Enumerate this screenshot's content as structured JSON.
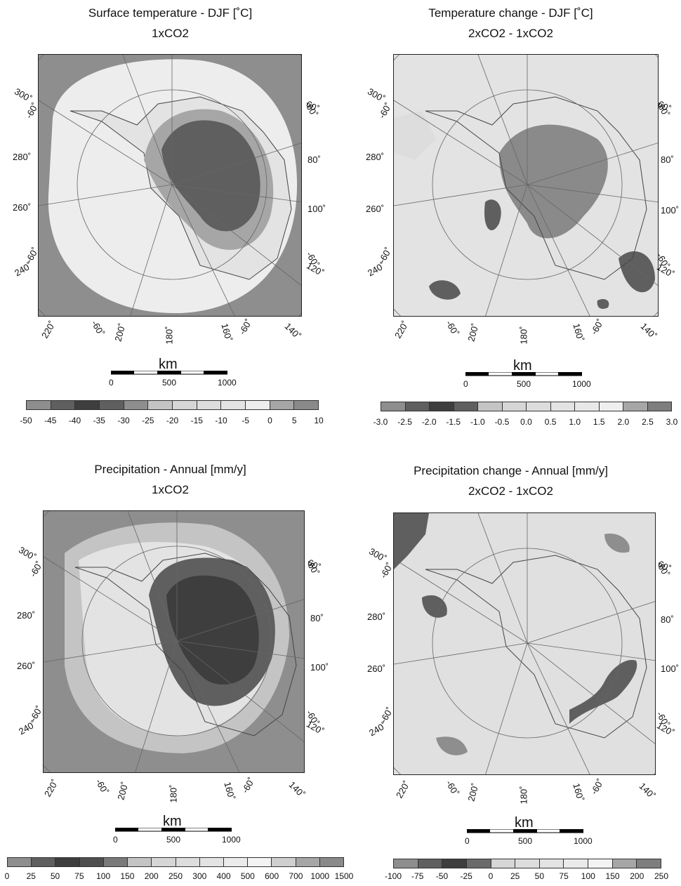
{
  "panels": [
    {
      "title": "Surface temperature - DJF [˚C]",
      "subtitle": "1xCO2",
      "colorbar_levels": [
        "-50",
        "-45",
        "-40",
        "-35",
        "-30",
        "-25",
        "-20",
        "-15",
        "-10",
        "-5",
        "0",
        "5",
        "10"
      ],
      "colorbar_colors": [
        "#8e8e8e",
        "#5f5f5f",
        "#3e3e3e",
        "#5f5f5f",
        "#8e8e8e",
        "#c4c4c4",
        "#d6d6d6",
        "#dddddd",
        "#e3e3e3",
        "#ededed",
        "#a6a6a6",
        "#8a8a8a"
      ]
    },
    {
      "title": "Temperature change - DJF [˚C]",
      "subtitle": "2xCO2 - 1xCO2",
      "colorbar_levels": [
        "-3.0",
        "-2.5",
        "-2.0",
        "-1.5",
        "-1.0",
        "-0.5",
        "0.0",
        "0.5",
        "1.0",
        "1.5",
        "2.0",
        "2.5",
        "3.0"
      ],
      "colorbar_colors": [
        "#8e8e8e",
        "#5f5f5f",
        "#3e3e3e",
        "#5f5f5f",
        "#c4c4c4",
        "#d6d6d6",
        "#dddddd",
        "#e3e3e3",
        "#e8e8e8",
        "#efefef",
        "#a6a6a6",
        "#7e7e7e"
      ]
    },
    {
      "title": "Precipitation - Annual [mm/y]",
      "subtitle": "1xCO2",
      "colorbar_levels": [
        "0",
        "25",
        "50",
        "75",
        "100",
        "150",
        "200",
        "250",
        "300",
        "400",
        "500",
        "600",
        "700",
        "1000",
        "1500"
      ],
      "colorbar_colors": [
        "#8e8e8e",
        "#5f5f5f",
        "#3e3e3e",
        "#4f4f4f",
        "#7a7a7a",
        "#c4c4c4",
        "#d6d6d6",
        "#dddddd",
        "#e3e3e3",
        "#ebebeb",
        "#f3f3f3",
        "#cfcfcf",
        "#a6a6a6",
        "#8a8a8a"
      ]
    },
    {
      "title": "Precipitation change - Annual [mm/y]",
      "subtitle": "2xCO2 - 1xCO2",
      "colorbar_levels": [
        "-100",
        "-75",
        "-50",
        "-25",
        "0",
        "25",
        "50",
        "75",
        "100",
        "150",
        "200",
        "250"
      ],
      "colorbar_colors": [
        "#8e8e8e",
        "#5f5f5f",
        "#3e3e3e",
        "#6a6a6a",
        "#d6d6d6",
        "#dddddd",
        "#e3e3e3",
        "#eaeaea",
        "#f3f3f3",
        "#a6a6a6",
        "#7e7e7e"
      ]
    }
  ],
  "map_labels": {
    "lon_300": "300˚",
    "lat_m60": "-60˚",
    "lon_280": "280˚",
    "lon_260": "260˚",
    "lon_240": "240˚",
    "lon_220": "220˚",
    "lon_200": "200˚",
    "lon_180": "180˚",
    "lon_160": "160˚",
    "lon_140": "140˚",
    "lon_120": "120˚",
    "lon_100": "100˚",
    "lon_80": "80˚",
    "lon_60": "60˚"
  },
  "scalebar": {
    "unit": "km",
    "ticks": [
      "0",
      "500",
      "1000"
    ]
  }
}
